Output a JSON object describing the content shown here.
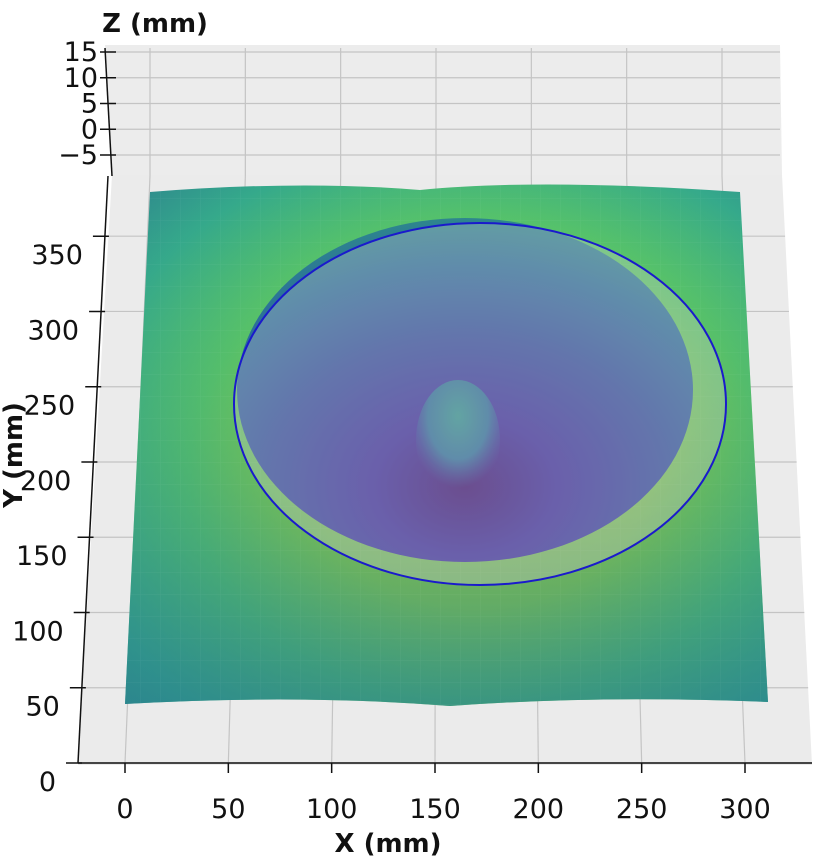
{
  "chart_data": {
    "type": "surface3d",
    "title": "",
    "xlabel": "X (mm)",
    "ylabel": "Y (mm)",
    "zlabel": "Z (mm)",
    "xticks": [
      0,
      50,
      100,
      150,
      200,
      250,
      300
    ],
    "yticks": [
      0,
      50,
      100,
      150,
      200,
      250,
      300,
      350
    ],
    "zticks": [
      "−5",
      "0",
      "5",
      "10",
      "15"
    ],
    "xlim": [
      0,
      310
    ],
    "ylim": [
      0,
      390
    ],
    "zlim": [
      -5,
      15
    ],
    "grid": true,
    "colormap": "viridis",
    "surface_extent": {
      "x": [
        0,
        310
      ],
      "y": [
        30,
        390
      ]
    },
    "depression": {
      "center_x": 165,
      "center_y": 175,
      "radius_x": 118,
      "radius_y": 88,
      "note": "bowl-shaped low region with a central raised mound"
    },
    "overlay_ellipse": {
      "center_x": 170,
      "center_y": 240,
      "radius_x": 118,
      "radius_y": 95,
      "stroke": "#1a1acc",
      "fill": "rgba(205,205,205,0.35)"
    }
  }
}
